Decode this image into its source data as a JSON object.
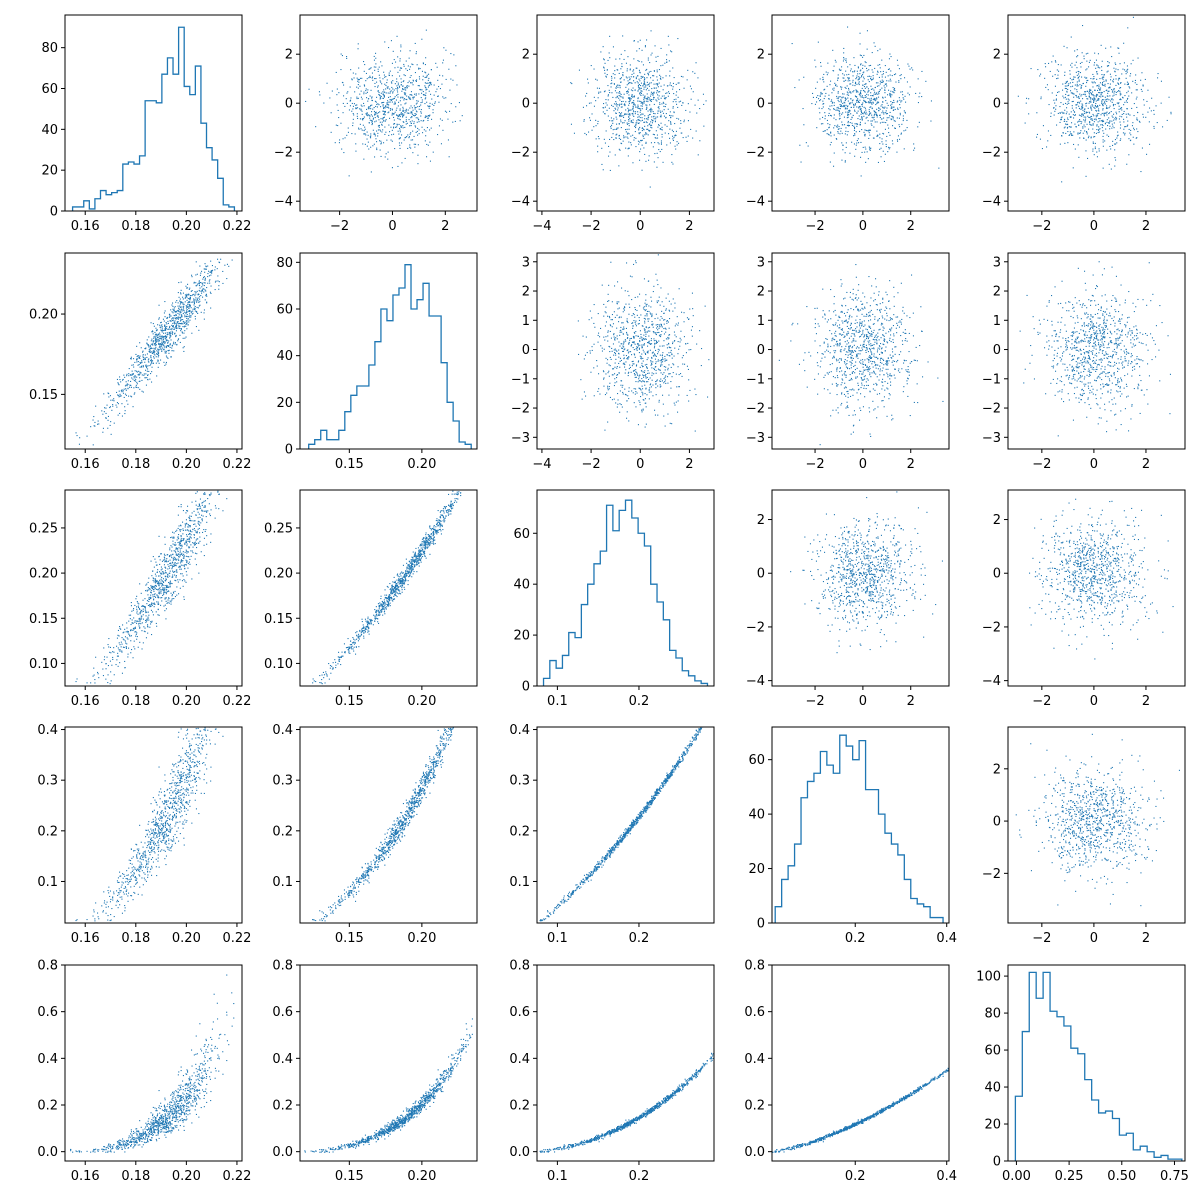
{
  "chart_data": {
    "type": "scatter-matrix",
    "description_of_layout": "5x5 corner-style pair grid",
    "colors": {
      "series": "#1f77b4",
      "frame": "#000000",
      "background": "#ffffff"
    },
    "dimension_count": 5,
    "ranges": [
      [
        0.152,
        0.222
      ],
      [
        0.116,
        0.238
      ],
      [
        0.075,
        0.292
      ],
      [
        0.018,
        0.405
      ],
      [
        -0.04,
        0.8
      ]
    ],
    "dimension_ticks": [
      {
        "values": [
          0.16,
          0.18,
          0.2,
          0.22
        ],
        "labels": [
          "0.16",
          "0.18",
          "0.20",
          "0.22"
        ]
      },
      {
        "values": [
          0.15,
          0.2
        ],
        "labels": [
          "0.15",
          "0.20"
        ]
      },
      {
        "values": [
          0.1,
          0.15,
          0.2,
          0.25
        ],
        "labels": [
          "0.10",
          "0.15",
          "0.20",
          "0.25"
        ]
      },
      {
        "values": [
          0.1,
          0.2,
          0.3,
          0.4
        ],
        "labels": [
          "0.1",
          "0.2",
          "0.3",
          "0.4"
        ]
      },
      {
        "values": [
          0.0,
          0.2,
          0.4,
          0.6,
          0.8
        ],
        "labels": [
          "0.0",
          "0.2",
          "0.4",
          "0.6",
          "0.8"
        ]
      }
    ],
    "dimension_xticks_override": {
      "2": {
        "values": [
          0.1,
          0.2
        ],
        "labels": [
          "0.1",
          "0.2"
        ]
      },
      "3": {
        "values": [
          0.2,
          0.4
        ],
        "labels": [
          "0.2",
          "0.4"
        ]
      },
      "4": {
        "values": [
          0.0,
          0.25,
          0.5,
          0.75
        ],
        "labels": [
          "0.00",
          "0.25",
          "0.50",
          "0.75"
        ]
      }
    },
    "upper_noise_panels": {
      "row0": {
        "xlim": [
          [
            -3.5,
            3.2
          ],
          [
            -4.2,
            3.0
          ],
          [
            -3.8,
            3.6
          ],
          [
            -3.3,
            3.5
          ]
        ],
        "ylim": [
          -4.4,
          3.6
        ],
        "yticks": [
          -4,
          -2,
          0,
          2
        ]
      },
      "row1": {
        "xlim": [
          [
            -4.2,
            3.0
          ],
          [
            -3.8,
            3.6
          ],
          [
            -3.3,
            3.5
          ]
        ],
        "ylim": [
          -3.4,
          3.3
        ],
        "yticks": [
          -3,
          -2,
          -1,
          0,
          1,
          2,
          3
        ]
      },
      "row2": {
        "xlim": [
          [
            -3.8,
            3.6
          ],
          [
            -3.3,
            3.5
          ]
        ],
        "ylim": [
          -4.2,
          3.1
        ],
        "yticks": [
          -4,
          -2,
          0,
          2
        ]
      },
      "row3": {
        "xlim": [
          [
            -3.3,
            3.5
          ]
        ],
        "ylim": [
          -3.9,
          3.6
        ],
        "yticks": [
          -2,
          0,
          2
        ]
      },
      "xtick_values": [
        -4,
        -2,
        0,
        2
      ],
      "noise_point_count": 900
    },
    "histograms": [
      {
        "dimension": 0,
        "bins_lo": 0.155,
        "bins_hi": 0.219,
        "counts": [
          2,
          2,
          5,
          1,
          6,
          10,
          8,
          9,
          10,
          23,
          24,
          23,
          27,
          54,
          54,
          53,
          67,
          75,
          67,
          90,
          61,
          57,
          71,
          43,
          31,
          25,
          16,
          3,
          2
        ],
        "yticks": [
          0,
          20,
          40,
          60,
          80
        ],
        "ylim": [
          0,
          96
        ]
      },
      {
        "dimension": 1,
        "bins_lo": 0.122,
        "bins_hi": 0.234,
        "counts": [
          2,
          4,
          8,
          4,
          4,
          8,
          16,
          23,
          27,
          27,
          36,
          46,
          60,
          55,
          66,
          69,
          79,
          60,
          64,
          71,
          57,
          57,
          37,
          20,
          12,
          3,
          2
        ],
        "yticks": [
          0,
          20,
          40,
          60,
          80
        ],
        "ylim": [
          0,
          84
        ]
      },
      {
        "dimension": 2,
        "bins_lo": 0.083,
        "bins_hi": 0.284,
        "counts": [
          3,
          10,
          7,
          12,
          21,
          19,
          32,
          40,
          48,
          53,
          71,
          61,
          69,
          73,
          66,
          60,
          55,
          40,
          33,
          26,
          14,
          11,
          6,
          4,
          2,
          1
        ],
        "yticks": [
          0,
          20,
          40,
          60
        ],
        "ylim": [
          0,
          77
        ]
      },
      {
        "dimension": 3,
        "bins_lo": 0.025,
        "bins_hi": 0.392,
        "counts": [
          6,
          16,
          21,
          29,
          46,
          52,
          55,
          63,
          58,
          55,
          69,
          65,
          60,
          67,
          49,
          49,
          40,
          33,
          29,
          25,
          16,
          9,
          7,
          6,
          2,
          2
        ],
        "yticks": [
          0,
          20,
          40,
          60
        ],
        "ylim": [
          0,
          72
        ]
      },
      {
        "dimension": 4,
        "bins_lo": -0.005,
        "bins_hi": 0.785,
        "counts": [
          35,
          70,
          102,
          88,
          102,
          81,
          78,
          73,
          61,
          58,
          44,
          33,
          26,
          27,
          23,
          14,
          15,
          6,
          8,
          5,
          2,
          3,
          1,
          1
        ],
        "yticks": [
          0,
          20,
          40,
          60,
          80,
          100
        ],
        "ylim": [
          0,
          106
        ]
      }
    ],
    "pair_point_count": 1000,
    "generator_note": "lower-triangle panels show strongly correlated monotone relationships between dimensions; upper-triangle panels show independent standard-normal noise"
  }
}
